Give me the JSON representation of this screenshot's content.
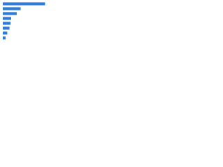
{
  "chart_data": {
    "type": "bar",
    "orientation": "horizontal",
    "categories": [
      null,
      null,
      null,
      null,
      null,
      null,
      null,
      null
    ],
    "values": [
      76,
      32,
      25,
      15,
      14,
      12,
      8,
      5
    ],
    "color": "#2f7bd9",
    "xlim": [
      0,
      100
    ]
  }
}
